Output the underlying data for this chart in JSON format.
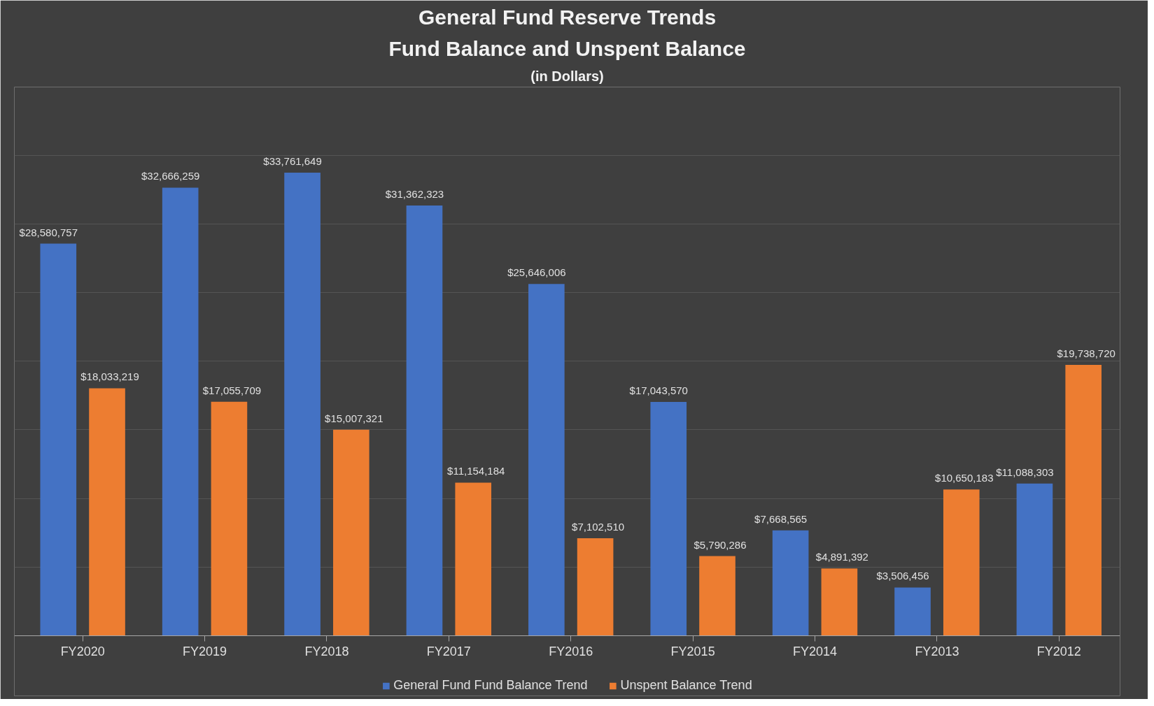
{
  "chart_data": {
    "type": "bar",
    "title": "General Fund Reserve Trends",
    "subtitle": "Fund Balance and Unspent Balance",
    "annotations": [
      "(in Dollars)"
    ],
    "categories": [
      "FY2020",
      "FY2019",
      "FY2018",
      "FY2017",
      "FY2016",
      "FY2015",
      "FY2014",
      "FY2013",
      "FY2012"
    ],
    "series": [
      {
        "name": "General Fund Fund Balance Trend",
        "color": "#4472c4",
        "values": [
          28580757,
          32666259,
          33761649,
          31362323,
          25646006,
          17043570,
          7668565,
          3506456,
          11088303
        ],
        "value_labels": [
          "$28,580,757",
          "$32,666,259",
          "$33,761,649",
          "$31,362,323",
          "$25,646,006",
          "$17,043,570",
          "$7,668,565",
          "$3,506,456",
          "$11,088,303"
        ]
      },
      {
        "name": "Unspent Balance Trend",
        "color": "#ed7d31",
        "values": [
          18033219,
          17055709,
          15007321,
          11154184,
          7102510,
          5790286,
          4891392,
          10650183,
          19738720
        ],
        "value_labels": [
          "$18,033,219",
          "$17,055,709",
          "$15,007,321",
          "$11,154,184",
          "$7,102,510",
          "$5,790,286",
          "$4,891,392",
          "$10,650,183",
          "$19,738,720"
        ]
      }
    ],
    "tick_labels": "x",
    "grid": "y",
    "legend": "bottom"
  }
}
